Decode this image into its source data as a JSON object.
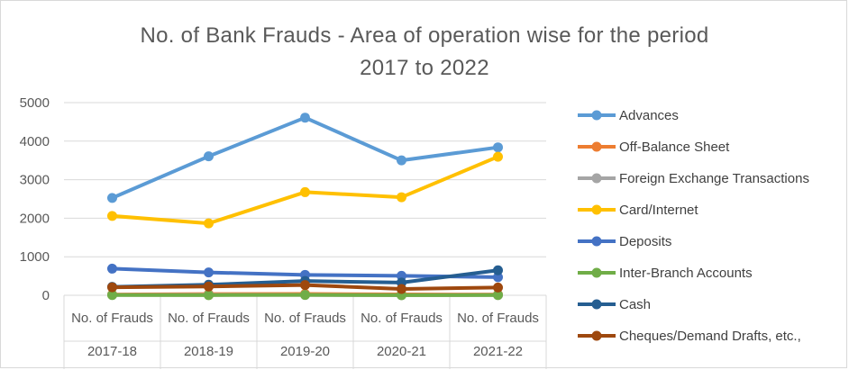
{
  "chart_data": {
    "type": "line",
    "title_lines": [
      "No. of Bank Frauds - Area of operation wise for the period",
      "2017 to 2022"
    ],
    "categories": [
      {
        "label": "No. of Frauds",
        "group": "2017-18"
      },
      {
        "label": "No. of Frauds",
        "group": "2018-19"
      },
      {
        "label": "No. of Frauds",
        "group": "2019-20"
      },
      {
        "label": "No. of Frauds",
        "group": "2020-21"
      },
      {
        "label": "No. of Frauds",
        "group": "2021-22"
      }
    ],
    "ylim": [
      0,
      5000
    ],
    "yticks": [
      "0",
      "1000",
      "2000",
      "3000",
      "4000",
      "5000"
    ],
    "grid": true,
    "legend_position": "right",
    "series": [
      {
        "name": "Advances",
        "color": "#5B9BD5",
        "values": [
          2526,
          3606,
          4610,
          3501,
          3839
        ]
      },
      {
        "name": "Off-Balance Sheet",
        "color": "#ED7D31",
        "values": [
          20,
          33,
          34,
          23,
          21
        ]
      },
      {
        "name": "Foreign Exchange Transactions",
        "color": "#A5A5A5",
        "values": [
          9,
          13,
          8,
          4,
          7
        ]
      },
      {
        "name": "Card/Internet",
        "color": "#FFC000",
        "values": [
          2059,
          1866,
          2677,
          2545,
          3596
        ]
      },
      {
        "name": "Deposits",
        "color": "#4472C4",
        "values": [
          691,
          593,
          530,
          504,
          471
        ]
      },
      {
        "name": "Inter-Branch Accounts",
        "color": "#70AD47",
        "values": [
          7,
          4,
          10,
          3,
          5
        ]
      },
      {
        "name": "Cash",
        "color": "#255E91",
        "values": [
          218,
          274,
          371,
          329,
          649
        ]
      },
      {
        "name": "Cheques/Demand Drafts, etc.,",
        "color": "#9E480E",
        "values": [
          207,
          229,
          265,
          163,
          202
        ]
      }
    ]
  }
}
